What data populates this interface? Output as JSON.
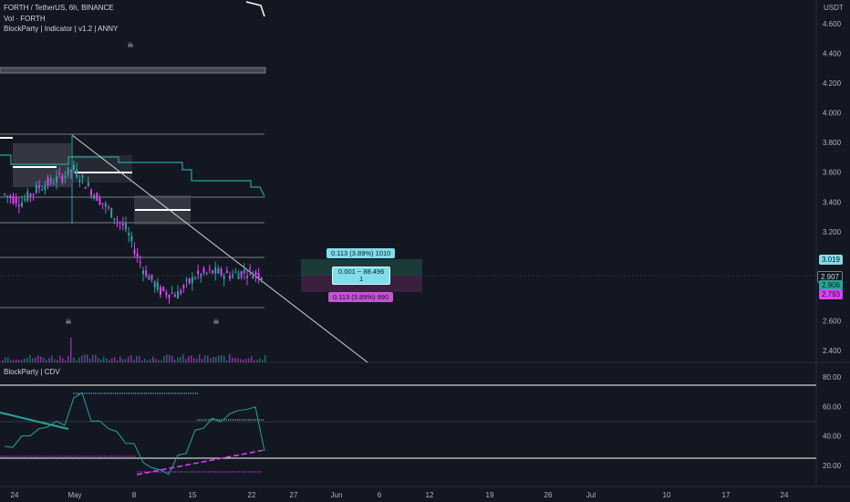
{
  "legend": {
    "symbol_line": "FORTH / TetherUS, 6h, BINANCE",
    "volume_line": "Vol · FORTH",
    "indicator_line": "BlockParty | Indicator | v1.2 | ANNY",
    "cdv_line": "BlockParty | CDV"
  },
  "currency": "USDT",
  "price_axis": [
    "4.600",
    "4.400",
    "4.200",
    "4.000",
    "3.800",
    "3.600",
    "3.400",
    "3.200",
    "2.600",
    "2.400"
  ],
  "price_tags": {
    "upper": "3.019",
    "current": "2.907",
    "mid": "2.906",
    "lower": "2.793"
  },
  "position_tool": {
    "target_label": "0.113 (3.89%) 1010",
    "center_label_line1": "0.001 ~ 88.496",
    "center_label_line2": "1",
    "stop_label": "0.113 (3.89%) 990"
  },
  "cdv_axis": [
    "80.00",
    "60.00",
    "40.00",
    "20.00"
  ],
  "time_axis": [
    "24",
    "May",
    "8",
    "15",
    "22",
    "27",
    "Jun",
    "6",
    "12",
    "19",
    "26",
    "Jul",
    "10",
    "17",
    "24"
  ],
  "colors": {
    "background": "#131722",
    "up": "#26a69a",
    "down": "#e040fb",
    "target_zone": "#1b3a3a",
    "stop_zone": "#3b1f3f",
    "teal_label": "#80deea",
    "magenta_label": "#c653d4"
  },
  "chart_data": {
    "type": "line",
    "title": "FORTH / TetherUS, 6h, BINANCE",
    "series": [
      {
        "name": "FORTH / TetherUS",
        "x": [
          "Apr 23",
          "Apr 25",
          "Apr 27",
          "Apr 29",
          "May 1",
          "May 3",
          "May 5",
          "May 7",
          "May 9",
          "May 11",
          "May 13",
          "May 15",
          "May 17",
          "May 19",
          "May 21",
          "May 23"
        ],
        "values": [
          3.45,
          3.4,
          3.5,
          3.55,
          3.62,
          3.48,
          3.35,
          3.22,
          2.95,
          2.8,
          2.78,
          2.9,
          2.93,
          2.91,
          2.93,
          2.907
        ]
      },
      {
        "name": "BlockParty | CDV",
        "x": [
          "Apr 23",
          "Apr 25",
          "Apr 27",
          "Apr 29",
          "May 1",
          "May 3",
          "May 5",
          "May 7",
          "May 9",
          "May 11",
          "May 13",
          "May 15",
          "May 17",
          "May 19",
          "May 21",
          "May 23"
        ],
        "values": [
          33,
          40,
          45,
          50,
          66,
          50,
          45,
          35,
          22,
          17,
          27,
          44,
          52,
          55,
          58,
          30
        ]
      }
    ],
    "ylim": [
      2.35,
      4.7
    ]
  }
}
